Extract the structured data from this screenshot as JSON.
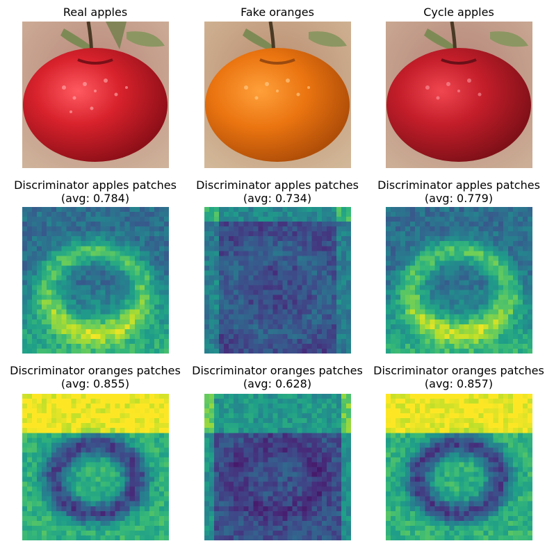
{
  "figure": {
    "row1_titles": [
      "Real apples",
      "Fake oranges",
      "Cycle apples"
    ],
    "row2_titles": [
      {
        "line1": "Discriminator apples patches",
        "line2": "(avg: 0.784)"
      },
      {
        "line1": "Discriminator apples patches",
        "line2": "(avg: 0.734)"
      },
      {
        "line1": "Discriminator apples patches",
        "line2": "(avg: 0.779)"
      }
    ],
    "row3_titles": [
      {
        "line1": "Discriminator oranges patches",
        "line2": "(avg: 0.855)"
      },
      {
        "line1": "Discriminator oranges patches",
        "line2": "(avg: 0.628)"
      },
      {
        "line1": "Discriminator oranges patches",
        "line2": "(avg: 0.857)"
      }
    ]
  },
  "chart_data": {
    "type": "heatmap",
    "colormap": "viridis",
    "grid_size": 30,
    "axes": "off",
    "images": [
      {
        "panel": "Real apples",
        "fruit_color": "#c8202a"
      },
      {
        "panel": "Fake oranges",
        "fruit_color": "#e8700e"
      },
      {
        "panel": "Cycle apples",
        "fruit_color": "#b8202c"
      }
    ],
    "heatmaps": [
      {
        "discriminator": "apples",
        "input": "Real apples",
        "avg": 0.784
      },
      {
        "discriminator": "apples",
        "input": "Fake oranges",
        "avg": 0.734
      },
      {
        "discriminator": "apples",
        "input": "Cycle apples",
        "avg": 0.779
      },
      {
        "discriminator": "oranges",
        "input": "Real apples",
        "avg": 0.855
      },
      {
        "discriminator": "oranges",
        "input": "Fake oranges",
        "avg": 0.628
      },
      {
        "discriminator": "oranges",
        "input": "Cycle apples",
        "avg": 0.857
      }
    ]
  }
}
